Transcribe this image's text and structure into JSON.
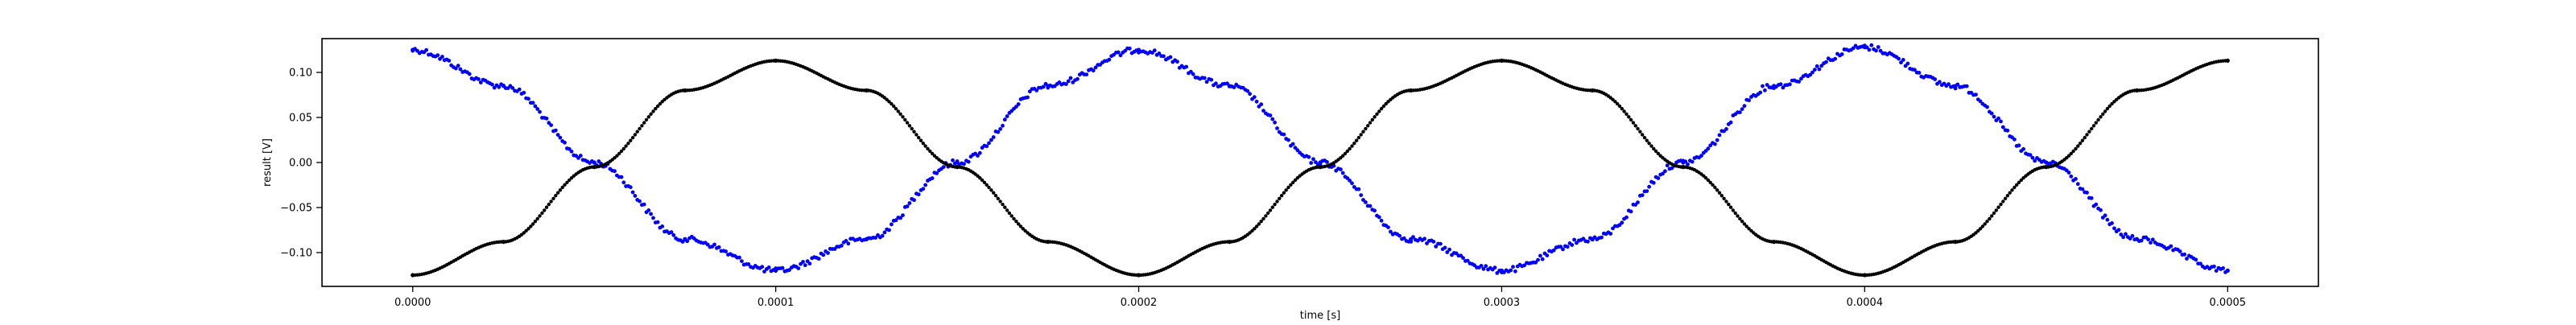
{
  "chart_data": {
    "type": "scatter",
    "xlabel": "time [s]",
    "ylabel": "result [V]",
    "xlim": [
      -2.5e-05,
      0.000525
    ],
    "ylim": [
      -0.1375,
      0.1375
    ],
    "xticks": [
      0.0,
      0.0001,
      0.0002,
      0.0003,
      0.0004,
      0.0005
    ],
    "xtick_labels": [
      "0.0000",
      "0.0001",
      "0.0002",
      "0.0003",
      "0.0004",
      "0.0005"
    ],
    "yticks": [
      -0.1,
      -0.05,
      0.0,
      0.05,
      0.1
    ],
    "ytick_labels": [
      "−0.10",
      "−0.05",
      "0.00",
      "0.05",
      "0.10"
    ],
    "grid": false,
    "legend": "none",
    "series": [
      {
        "color": "#0000ff",
        "marker": "dot",
        "noisy": true,
        "x": [
          0.0,
          2.5e-05,
          5e-05,
          7.5e-05,
          0.0001,
          0.000125,
          0.00015,
          0.000175,
          0.0002,
          0.000225,
          0.00025,
          0.000275,
          0.0003,
          0.000325,
          0.00035,
          0.000375,
          0.0004,
          0.000425,
          0.00045,
          0.000475,
          0.0005
        ],
        "y": [
          0.125,
          0.085,
          0.0,
          -0.085,
          -0.12,
          -0.085,
          0.0,
          0.085,
          0.125,
          0.085,
          0.0,
          -0.085,
          -0.12,
          -0.085,
          0.0,
          0.085,
          0.128,
          0.085,
          0.0,
          -0.085,
          -0.12
        ]
      },
      {
        "color": "#000000",
        "marker": "dot",
        "noisy": false,
        "x": [
          0.0,
          2.5e-05,
          5e-05,
          7.5e-05,
          0.0001,
          0.000125,
          0.00015,
          0.000175,
          0.0002,
          0.000225,
          0.00025,
          0.000275,
          0.0003,
          0.000325,
          0.00035,
          0.000375,
          0.0004,
          0.000425,
          0.00045,
          0.000475,
          0.0005
        ],
        "y": [
          -0.125,
          -0.088,
          -0.005,
          0.08,
          0.113,
          0.08,
          -0.005,
          -0.088,
          -0.125,
          -0.088,
          -0.005,
          0.08,
          0.113,
          0.08,
          -0.005,
          -0.088,
          -0.125,
          -0.088,
          -0.005,
          0.08,
          0.113
        ]
      }
    ]
  }
}
